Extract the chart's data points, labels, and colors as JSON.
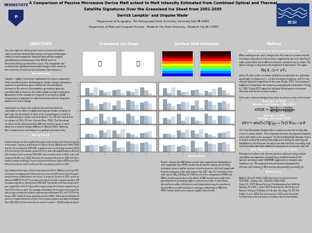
{
  "title_line1": "A Comparison of Passive Microwave Derive Melt extent to Melt Intensity Estimated from Combined Optical and Thermal",
  "title_line2": "Satellite Signatures Over the Greenland Ice Sheet from 2001-2005",
  "authors": "Derrick Lampkin¹ and Unquiea Wade²",
  "affil1": "¹Department of Geography , The Pennsylvania State University, University Park PA 16801",
  "affil2": "²Department of Math and Computer Science , Elizabeth City State University , Elizabeth City NC 27909",
  "header_bg": "#c8c8c8",
  "header_stripe_top": "#800000",
  "header_stripe_bot": "#800000",
  "col_header_bg": "#4a6080",
  "col_header_text": "#ffffff",
  "red_sub_bg": "#800000",
  "red_sub_text": "#ffffff",
  "blue_sub_bg": "#4a6080",
  "blue_sub_text": "#ffffff",
  "body_bg": "#e0e0e0",
  "panel_bg": "#f0f0f0",
  "white_panel": "#ffffff",
  "overall_bg": "#c8c8c8"
}
